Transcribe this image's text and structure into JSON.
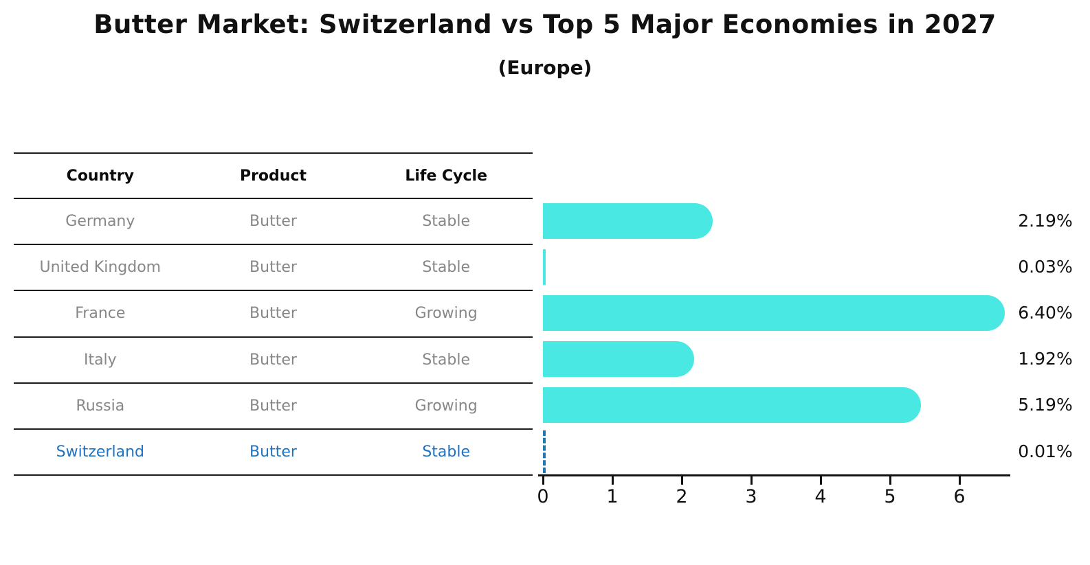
{
  "title": "Butter Market: Switzerland vs Top 5 Major Economies in 2027",
  "subtitle": "(Europe)",
  "table": {
    "headers": [
      "Country",
      "Product",
      "Life Cycle"
    ],
    "rows": [
      {
        "country": "Germany",
        "product": "Butter",
        "life_cycle": "Stable",
        "highlighted": false
      },
      {
        "country": "United Kingdom",
        "product": "Butter",
        "life_cycle": "Stable",
        "highlighted": false
      },
      {
        "country": "France",
        "product": "Butter",
        "life_cycle": "Growing",
        "highlighted": false
      },
      {
        "country": "Italy",
        "product": "Butter",
        "life_cycle": "Stable",
        "highlighted": false
      },
      {
        "country": "Russia",
        "product": "Butter",
        "life_cycle": "Growing",
        "highlighted": false
      },
      {
        "country": "Switzerland",
        "product": "Butter",
        "life_cycle": "Stable",
        "highlighted": true
      }
    ]
  },
  "chart_data": {
    "type": "bar",
    "orientation": "horizontal",
    "title": "Butter Market: Switzerland vs Top 5 Major Economies in 2027",
    "subtitle": "(Europe)",
    "categories": [
      "Germany",
      "United Kingdom",
      "France",
      "Italy",
      "Russia",
      "Switzerland"
    ],
    "values": [
      2.19,
      0.03,
      6.4,
      1.92,
      5.19,
      0.01
    ],
    "value_labels": [
      "2.19%",
      "0.03%",
      "6.40%",
      "1.92%",
      "5.19%",
      "0.01%"
    ],
    "x_ticks": [
      "0",
      "1",
      "2",
      "3",
      "4",
      "5",
      "6"
    ],
    "xlim": [
      0,
      6.73
    ],
    "grid": false,
    "legend": "none",
    "bar_color": "#4ae8e3",
    "highlight_index": 5,
    "highlight_style": "dashed-blue-outline",
    "highlight_color": "#1f77b4"
  }
}
